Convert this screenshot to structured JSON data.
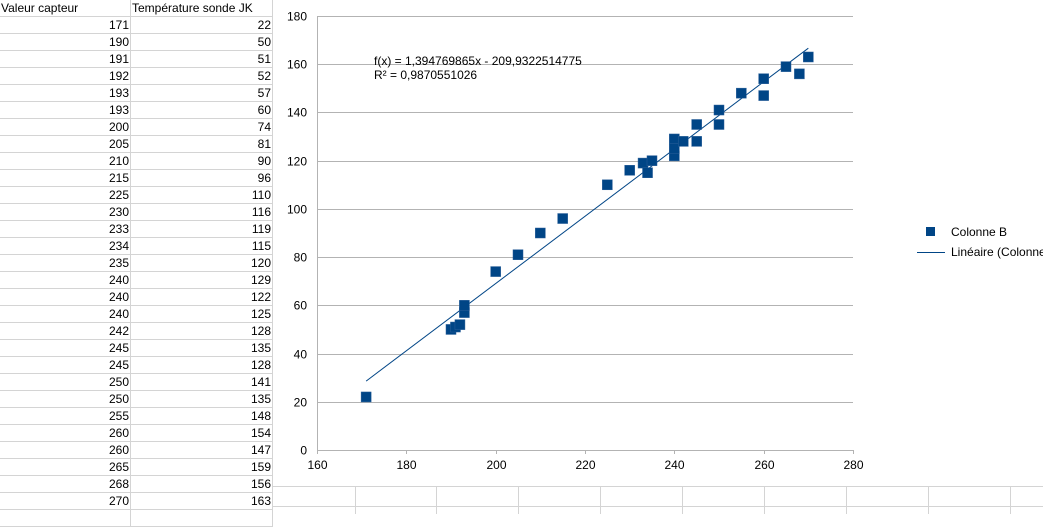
{
  "sheet": {
    "headers": [
      "Valeur capteur",
      "Température sonde JK"
    ],
    "rows": [
      [
        "171",
        "22"
      ],
      [
        "190",
        "50"
      ],
      [
        "191",
        "51"
      ],
      [
        "192",
        "52"
      ],
      [
        "193",
        "57"
      ],
      [
        "193",
        "60"
      ],
      [
        "200",
        "74"
      ],
      [
        "205",
        "81"
      ],
      [
        "210",
        "90"
      ],
      [
        "215",
        "96"
      ],
      [
        "225",
        "110"
      ],
      [
        "230",
        "116"
      ],
      [
        "233",
        "119"
      ],
      [
        "234",
        "115"
      ],
      [
        "235",
        "120"
      ],
      [
        "240",
        "129"
      ],
      [
        "240",
        "122"
      ],
      [
        "240",
        "125"
      ],
      [
        "242",
        "128"
      ],
      [
        "245",
        "135"
      ],
      [
        "245",
        "128"
      ],
      [
        "250",
        "141"
      ],
      [
        "250",
        "135"
      ],
      [
        "255",
        "148"
      ],
      [
        "260",
        "154"
      ],
      [
        "260",
        "147"
      ],
      [
        "265",
        "159"
      ],
      [
        "268",
        "156"
      ],
      [
        "270",
        "163"
      ]
    ]
  },
  "chart_data": {
    "type": "scatter",
    "title": "",
    "xlabel": "",
    "ylabel": "",
    "xlim": [
      160,
      280
    ],
    "ylim": [
      0,
      180
    ],
    "x_ticks": [
      "160",
      "180",
      "200",
      "220",
      "240",
      "260",
      "280"
    ],
    "y_ticks": [
      "0",
      "20",
      "40",
      "60",
      "80",
      "100",
      "120",
      "140",
      "160",
      "180"
    ],
    "grid": "horizontal",
    "series": [
      {
        "name": "Colonne B",
        "color": "#004586",
        "x": [
          171,
          190,
          191,
          192,
          193,
          193,
          200,
          205,
          210,
          215,
          225,
          230,
          233,
          234,
          235,
          240,
          240,
          240,
          242,
          245,
          245,
          250,
          250,
          255,
          260,
          260,
          265,
          268,
          270
        ],
        "y": [
          22,
          50,
          51,
          52,
          57,
          60,
          74,
          81,
          90,
          96,
          110,
          116,
          119,
          115,
          120,
          129,
          122,
          125,
          128,
          135,
          128,
          141,
          135,
          148,
          154,
          147,
          159,
          156,
          163
        ]
      }
    ],
    "trendline": {
      "name": "Linéaire (Colonne B)",
      "color": "#004586",
      "slope": 1.394769865,
      "intercept": -209.9322514775,
      "x_range": [
        171,
        270
      ]
    },
    "equation_text": "f(x) = 1,394769865x - 209,9322514775",
    "r2_text": "R² = 0,9870551026",
    "legend": [
      "Colonne B",
      "Linéaire (Colonne B)"
    ],
    "legend_position": "right"
  }
}
